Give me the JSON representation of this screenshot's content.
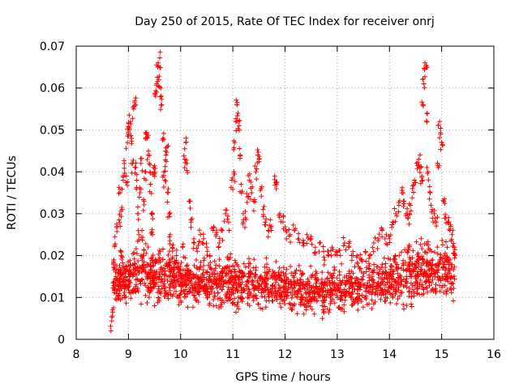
{
  "chart_data": {
    "type": "scatter",
    "title": "Day 250 of 2015, Rate Of TEC Index for receiver onrj",
    "xlabel": "GPS time / hours",
    "ylabel": "ROTI / TECUs",
    "xlim": [
      8,
      16
    ],
    "ylim": [
      0,
      0.07
    ],
    "x_ticks": [
      8,
      9,
      10,
      11,
      12,
      13,
      14,
      15,
      16
    ],
    "x_tick_labels": [
      "8",
      "9",
      "10",
      "11",
      "12",
      "13",
      "14",
      "15",
      "16"
    ],
    "y_ticks": [
      0,
      0.01,
      0.02,
      0.03,
      0.04,
      0.05,
      0.06,
      0.07
    ],
    "y_tick_labels": [
      "0",
      "0.01",
      "0.02",
      "0.03",
      "0.04",
      "0.05",
      "0.06",
      "0.07"
    ],
    "grid": true,
    "marker": "+",
    "color": "#ff0000",
    "series": [
      {
        "points": [
          [
            8.68,
            0.0044
          ],
          [
            8.7,
            0.0065
          ],
          [
            8.72,
            0.019
          ],
          [
            8.74,
            0.0245
          ],
          [
            8.76,
            0.015
          ],
          [
            8.78,
            0.027
          ],
          [
            8.8,
            0.012
          ],
          [
            8.82,
            0.0285
          ],
          [
            8.84,
            0.035
          ],
          [
            8.86,
            0.02
          ],
          [
            8.88,
            0.031
          ],
          [
            8.9,
            0.038
          ],
          [
            8.92,
            0.042
          ],
          [
            8.94,
            0.015
          ],
          [
            8.96,
            0.039
          ],
          [
            8.98,
            0.047
          ],
          [
            9.0,
            0.049
          ],
          [
            9.02,
            0.0505
          ],
          [
            9.04,
            0.052
          ],
          [
            9.06,
            0.048
          ],
          [
            9.08,
            0.042
          ],
          [
            9.1,
            0.055
          ],
          [
            9.12,
            0.0565
          ],
          [
            9.14,
            0.041
          ],
          [
            9.16,
            0.038
          ],
          [
            9.18,
            0.03
          ],
          [
            9.2,
            0.025
          ],
          [
            9.22,
            0.035
          ],
          [
            9.24,
            0.042
          ],
          [
            9.26,
            0.026
          ],
          [
            9.28,
            0.02
          ],
          [
            9.3,
            0.033
          ],
          [
            9.32,
            0.04
          ],
          [
            9.34,
            0.049
          ],
          [
            9.36,
            0.048
          ],
          [
            9.38,
            0.044
          ],
          [
            9.4,
            0.042
          ],
          [
            9.42,
            0.037
          ],
          [
            9.44,
            0.03
          ],
          [
            9.46,
            0.025
          ],
          [
            9.48,
            0.041
          ],
          [
            9.5,
            0.04
          ],
          [
            9.52,
            0.058
          ],
          [
            9.54,
            0.061
          ],
          [
            9.56,
            0.065
          ],
          [
            9.58,
            0.062
          ],
          [
            9.6,
            0.0672
          ],
          [
            9.62,
            0.06
          ],
          [
            9.64,
            0.056
          ],
          [
            9.66,
            0.048
          ],
          [
            9.68,
            0.04
          ],
          [
            9.7,
            0.038
          ],
          [
            9.72,
            0.044
          ],
          [
            9.74,
            0.046
          ],
          [
            9.76,
            0.035
          ],
          [
            9.78,
            0.03
          ],
          [
            9.8,
            0.025
          ],
          [
            9.84,
            0.022
          ],
          [
            9.88,
            0.018
          ],
          [
            9.92,
            0.02
          ],
          [
            9.96,
            0.017
          ],
          [
            10.0,
            0.015
          ],
          [
            10.04,
            0.022
          ],
          [
            10.08,
            0.043
          ],
          [
            10.1,
            0.047
          ],
          [
            10.12,
            0.042
          ],
          [
            10.16,
            0.033
          ],
          [
            10.2,
            0.028
          ],
          [
            10.26,
            0.023
          ],
          [
            10.32,
            0.021
          ],
          [
            10.38,
            0.025
          ],
          [
            10.44,
            0.024
          ],
          [
            10.5,
            0.022
          ],
          [
            10.56,
            0.02
          ],
          [
            10.62,
            0.026
          ],
          [
            10.68,
            0.025
          ],
          [
            10.74,
            0.023
          ],
          [
            10.8,
            0.026
          ],
          [
            10.86,
            0.03
          ],
          [
            10.92,
            0.028
          ],
          [
            10.98,
            0.038
          ],
          [
            11.02,
            0.04
          ],
          [
            11.04,
            0.047
          ],
          [
            11.06,
            0.052
          ],
          [
            11.08,
            0.056
          ],
          [
            11.1,
            0.054
          ],
          [
            11.12,
            0.051
          ],
          [
            11.14,
            0.044
          ],
          [
            11.16,
            0.037
          ],
          [
            11.2,
            0.03
          ],
          [
            11.24,
            0.029
          ],
          [
            11.28,
            0.034
          ],
          [
            11.32,
            0.038
          ],
          [
            11.36,
            0.035
          ],
          [
            11.4,
            0.033
          ],
          [
            11.44,
            0.04
          ],
          [
            11.48,
            0.044
          ],
          [
            11.5,
            0.043
          ],
          [
            11.54,
            0.036
          ],
          [
            11.58,
            0.031
          ],
          [
            11.62,
            0.028
          ],
          [
            11.68,
            0.026
          ],
          [
            11.74,
            0.027
          ],
          [
            11.8,
            0.039
          ],
          [
            11.84,
            0.037
          ],
          [
            11.9,
            0.03
          ],
          [
            11.96,
            0.028
          ],
          [
            12.02,
            0.026
          ],
          [
            12.1,
            0.025
          ],
          [
            12.18,
            0.026
          ],
          [
            12.26,
            0.024
          ],
          [
            12.34,
            0.023
          ],
          [
            12.42,
            0.025
          ],
          [
            12.5,
            0.024
          ],
          [
            12.58,
            0.022
          ],
          [
            12.66,
            0.023
          ],
          [
            12.74,
            0.021
          ],
          [
            12.82,
            0.02
          ],
          [
            12.9,
            0.022
          ],
          [
            12.98,
            0.021
          ],
          [
            13.06,
            0.02
          ],
          [
            13.14,
            0.023
          ],
          [
            13.22,
            0.022
          ],
          [
            13.3,
            0.021
          ],
          [
            13.38,
            0.02
          ],
          [
            13.46,
            0.019
          ],
          [
            13.54,
            0.021
          ],
          [
            13.62,
            0.02
          ],
          [
            13.7,
            0.023
          ],
          [
            13.78,
            0.024
          ],
          [
            13.86,
            0.026
          ],
          [
            13.94,
            0.025
          ],
          [
            14.0,
            0.024
          ],
          [
            14.06,
            0.028
          ],
          [
            14.12,
            0.03
          ],
          [
            14.18,
            0.032
          ],
          [
            14.24,
            0.035
          ],
          [
            14.28,
            0.033
          ],
          [
            14.32,
            0.03
          ],
          [
            14.36,
            0.029
          ],
          [
            14.4,
            0.032
          ],
          [
            14.44,
            0.036
          ],
          [
            14.48,
            0.038
          ],
          [
            14.52,
            0.042
          ],
          [
            14.56,
            0.043
          ],
          [
            14.6,
            0.041
          ],
          [
            14.62,
            0.039
          ],
          [
            14.64,
            0.056
          ],
          [
            14.66,
            0.061
          ],
          [
            14.68,
            0.066
          ],
          [
            14.7,
            0.065
          ],
          [
            14.72,
            0.054
          ],
          [
            14.74,
            0.04
          ],
          [
            14.78,
            0.035
          ],
          [
            14.82,
            0.031
          ],
          [
            14.86,
            0.03
          ],
          [
            14.9,
            0.028
          ],
          [
            14.94,
            0.041
          ],
          [
            14.96,
            0.052
          ],
          [
            14.98,
            0.049
          ],
          [
            15.0,
            0.047
          ],
          [
            15.04,
            0.033
          ],
          [
            15.08,
            0.029
          ],
          [
            15.12,
            0.028
          ],
          [
            15.16,
            0.026
          ],
          [
            15.2,
            0.025
          ],
          [
            15.24,
            0.022
          ],
          [
            15.26,
            0.02
          ]
        ],
        "band": [
          [
            8.7,
            0.007,
            0.02
          ],
          [
            9.0,
            0.006,
            0.022
          ],
          [
            9.5,
            0.006,
            0.024
          ],
          [
            10.0,
            0.006,
            0.02
          ],
          [
            10.5,
            0.006,
            0.02
          ],
          [
            11.0,
            0.005,
            0.02
          ],
          [
            11.5,
            0.005,
            0.02
          ],
          [
            12.0,
            0.005,
            0.018
          ],
          [
            12.5,
            0.004,
            0.018
          ],
          [
            13.0,
            0.004,
            0.018
          ],
          [
            13.5,
            0.005,
            0.019
          ],
          [
            14.0,
            0.006,
            0.022
          ],
          [
            14.5,
            0.006,
            0.024
          ],
          [
            15.0,
            0.007,
            0.024
          ],
          [
            15.25,
            0.008,
            0.022
          ]
        ]
      }
    ]
  }
}
